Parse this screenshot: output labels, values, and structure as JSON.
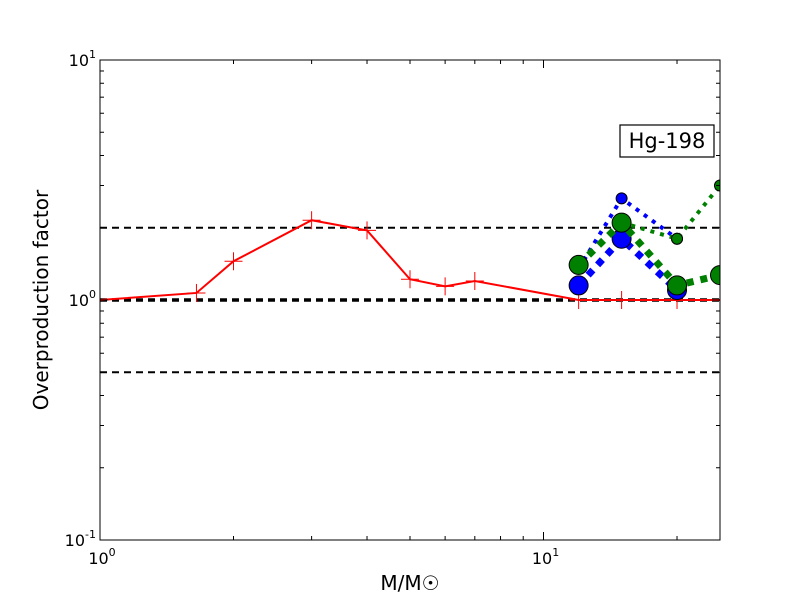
{
  "chart_data": {
    "type": "line",
    "title": "",
    "xlabel": "M/M☉",
    "ylabel": "Overproduction factor",
    "xscale": "log",
    "yscale": "log",
    "xlim": [
      1,
      25
    ],
    "ylim": [
      0.1,
      10
    ],
    "x_ticks": [
      {
        "value": 1,
        "base": "10",
        "exp": "0"
      },
      {
        "value": 10,
        "base": "10",
        "exp": "1"
      }
    ],
    "y_ticks": [
      {
        "value": 0.1,
        "base": "10",
        "exp": "-1"
      },
      {
        "value": 1,
        "base": "10",
        "exp": "0"
      },
      {
        "value": 10,
        "base": "10",
        "exp": "1"
      }
    ],
    "annotation": "Hg-198",
    "reference_lines": [
      {
        "y": 2.0,
        "style": "dashed",
        "color": "#000000"
      },
      {
        "y": 1.0,
        "style": "dashed-thick",
        "color": "#000000"
      },
      {
        "y": 0.5,
        "style": "dashed",
        "color": "#000000"
      }
    ],
    "series": [
      {
        "color": "#ff0000",
        "style": "solid",
        "marker": "plus",
        "x": [
          1,
          1.65,
          2,
          3,
          4,
          5,
          6,
          7,
          12,
          15,
          20,
          25
        ],
        "y": [
          1.0,
          1.07,
          1.45,
          2.15,
          1.95,
          1.22,
          1.14,
          1.2,
          1.0,
          1.0,
          1.0,
          1.0
        ]
      },
      {
        "color": "#0000ff",
        "style": "dotted",
        "marker": "circle-small",
        "x": [
          12,
          15,
          20
        ],
        "y": [
          1.35,
          2.65,
          1.8
        ]
      },
      {
        "color": "#0000ff",
        "style": "dotted-thick",
        "marker": "circle-large",
        "x": [
          12,
          15,
          20
        ],
        "y": [
          1.15,
          1.8,
          1.1
        ]
      },
      {
        "color": "#008000",
        "style": "dotted",
        "marker": "circle-small",
        "x": [
          15,
          20,
          25
        ],
        "y": [
          2.1,
          1.8,
          3.0
        ]
      },
      {
        "color": "#008000",
        "style": "dotted-thick",
        "marker": "circle-large",
        "x": [
          12,
          15,
          20,
          25
        ],
        "y": [
          1.4,
          2.1,
          1.15,
          1.27
        ]
      }
    ]
  }
}
